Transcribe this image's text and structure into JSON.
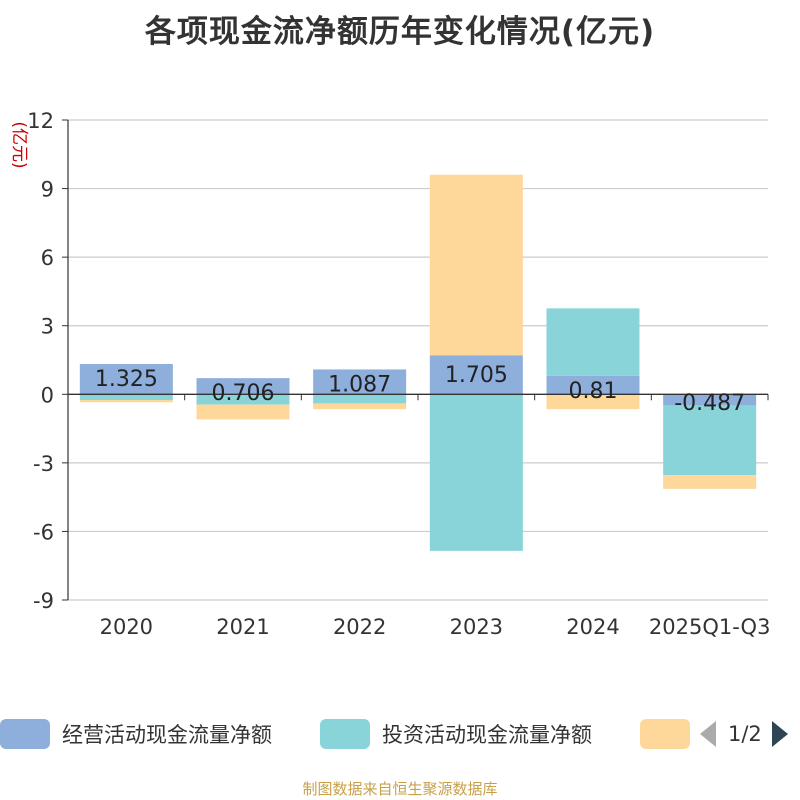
{
  "chart_data": {
    "type": "bar",
    "stacked": true,
    "title": "各项现金流净额历年变化情况(亿元)",
    "ylabel": "(亿元)",
    "ylim": [
      -9,
      12
    ],
    "yticks": [
      -9,
      -6,
      -3,
      0,
      3,
      6,
      9,
      12
    ],
    "categories": [
      "2020",
      "2021",
      "2022",
      "2023",
      "2024",
      "2025Q1-Q3"
    ],
    "series": [
      {
        "name": "经营活动现金流量净额",
        "color": "#8eaedc",
        "values": [
          1.325,
          0.706,
          1.087,
          1.705,
          0.81,
          -0.487
        ]
      },
      {
        "name": "投资活动现金流量净额",
        "color": "#88d4d8",
        "values": [
          -0.25,
          -0.45,
          -0.4,
          -6.85,
          2.95,
          -3.05
        ]
      },
      {
        "name": "",
        "color": "#fdd89a",
        "values": [
          -0.1,
          -0.65,
          -0.25,
          7.9,
          -0.65,
          -0.6
        ]
      }
    ],
    "data_labels": [
      "1.325",
      "0.706",
      "1.087",
      "1.705",
      "0.81",
      "-0.487"
    ]
  },
  "legend": {
    "items": [
      {
        "label": "经营活动现金流量净额",
        "color": "#8eaedc"
      },
      {
        "label": "投资活动现金流量净额",
        "color": "#88d4d8"
      },
      {
        "label": "",
        "color": "#fdd89a"
      }
    ],
    "page": "1/2"
  },
  "source": "制图数据来自恒生聚源数据库",
  "colors": {
    "axis_label": "#cc0000",
    "grid": "#cccccc",
    "text": "#333333"
  }
}
